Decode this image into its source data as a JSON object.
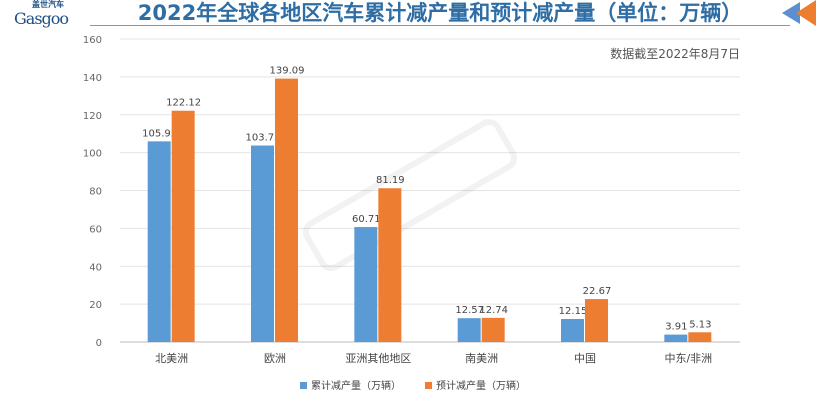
{
  "logo": {
    "cn": "盖世汽车",
    "en": "Gasgoo"
  },
  "watermark": "盖世汽车 Gasgoo",
  "chart_data": {
    "type": "bar",
    "title": "2022年全球各地区汽车累计减产量和预计减产量（单位：万辆）",
    "note": "数据截至2022年8月7日",
    "categories": [
      "北美洲",
      "欧洲",
      "亚洲其他地区",
      "南美洲",
      "中国",
      "中东/非洲"
    ],
    "series": [
      {
        "name": "累计减产量（万辆）",
        "color": "#5b9bd5",
        "values": [
          105.95,
          103.75,
          60.71,
          12.57,
          12.15,
          3.91
        ]
      },
      {
        "name": "预计减产量（万辆）",
        "color": "#ed7d31",
        "values": [
          122.12,
          139.09,
          81.19,
          12.74,
          22.67,
          5.13
        ]
      }
    ],
    "ylim": [
      0,
      160
    ],
    "yticks": [
      0,
      20,
      40,
      60,
      80,
      100,
      120,
      140,
      160
    ],
    "grid": true,
    "legend": "bottom"
  }
}
